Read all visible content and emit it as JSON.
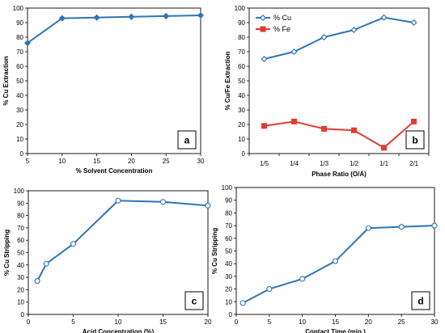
{
  "chart_data": [
    {
      "panel": "a",
      "type": "line",
      "xlabel": "% Solvent Concentration",
      "ylabel": "% Cu Extraction",
      "xlim": [
        5,
        30
      ],
      "ylim": [
        0,
        100
      ],
      "xticks": [
        5,
        10,
        15,
        20,
        25,
        30
      ],
      "yticks": [
        0,
        10,
        20,
        30,
        40,
        50,
        60,
        70,
        80,
        90,
        100
      ],
      "grid": false,
      "series": [
        {
          "x": [
            5,
            10,
            15,
            20,
            25,
            30
          ],
          "values": [
            76,
            93,
            93.5,
            94,
            94.5,
            95
          ],
          "color": "#2e75b6",
          "marker": "diamond-filled"
        }
      ]
    },
    {
      "panel": "b",
      "type": "line",
      "xlabel": "Phase  Ratio (O/A)",
      "ylabel": "% Cu/Fe Extraction",
      "categories": [
        "1/5",
        "1/4",
        "1/3",
        "1/2",
        "1/1",
        "2/1"
      ],
      "ylim": [
        0,
        100
      ],
      "yticks": [
        0,
        10,
        20,
        30,
        40,
        50,
        60,
        70,
        80,
        90,
        100
      ],
      "grid": false,
      "legend": "top-left",
      "series": [
        {
          "name": "% Cu",
          "values": [
            65,
            70,
            80,
            85,
            93.5,
            90
          ],
          "color": "#2e75b6",
          "marker": "diamond-open"
        },
        {
          "name": "% Fe",
          "values": [
            19,
            22,
            17,
            16,
            4,
            22
          ],
          "color": "#e03c31",
          "marker": "square-filled"
        }
      ]
    },
    {
      "panel": "c",
      "type": "line",
      "xlabel": "Acid Concentration (%)",
      "ylabel": "% Cu Stripping",
      "xlim": [
        0,
        20
      ],
      "ylim": [
        0,
        100
      ],
      "xticks": [
        0,
        5,
        10,
        15,
        20
      ],
      "yticks": [
        0,
        10,
        20,
        30,
        40,
        50,
        60,
        70,
        80,
        90,
        100
      ],
      "grid": false,
      "series": [
        {
          "x": [
            1,
            2,
            5,
            10,
            15,
            20
          ],
          "values": [
            27,
            41,
            57,
            92,
            91,
            88
          ],
          "color": "#2e75b6",
          "marker": "circle-open"
        }
      ]
    },
    {
      "panel": "d",
      "type": "line",
      "xlabel": "Contact Time (min.)",
      "ylabel": "% Cu Stripping",
      "xlim": [
        0,
        30
      ],
      "ylim": [
        0,
        100
      ],
      "xticks": [
        0,
        5,
        10,
        15,
        20,
        25,
        30
      ],
      "yticks": [
        0,
        10,
        20,
        30,
        40,
        50,
        60,
        70,
        80,
        90,
        100
      ],
      "grid": false,
      "series": [
        {
          "x": [
            1,
            5,
            10,
            15,
            20,
            25,
            30
          ],
          "values": [
            9,
            20,
            28,
            42,
            68,
            69,
            70
          ],
          "color": "#2e75b6",
          "marker": "circle-open"
        }
      ]
    }
  ]
}
